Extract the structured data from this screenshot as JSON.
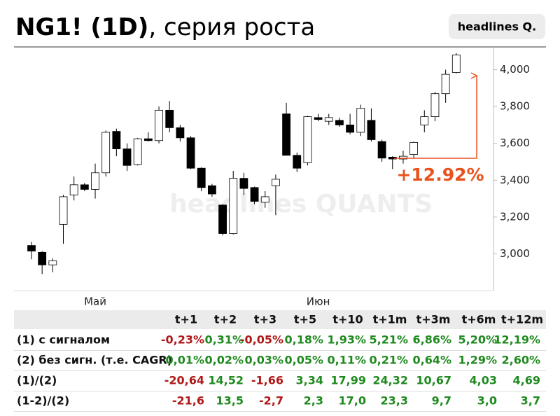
{
  "header": {
    "title": "NG1! (1D)",
    "subtitle": ", серия роста",
    "badge": "headlines Q."
  },
  "chart_data": {
    "type": "candlestick",
    "categories": [
      null,
      null,
      null,
      null,
      null,
      null,
      "Май",
      null,
      null,
      null,
      null,
      null,
      null,
      null,
      null,
      null,
      null,
      null,
      null,
      null,
      null,
      null,
      null,
      null,
      null,
      null,
      null,
      "Июн",
      null,
      null,
      null,
      null,
      null,
      null,
      null,
      null,
      null,
      null,
      null,
      null,
      null
    ],
    "open": [
      3045,
      3008,
      2940,
      3160,
      3320,
      3375,
      3350,
      3440,
      3665,
      3570,
      3485,
      3625,
      3615,
      3780,
      3685,
      3630,
      3465,
      3370,
      3265,
      3110,
      3410,
      3360,
      3280,
      3370,
      3760,
      3535,
      3495,
      3740,
      3720,
      3725,
      3700,
      3660,
      3725,
      3610,
      3525,
      3515,
      3540,
      3700,
      3745,
      3870,
      3985
    ],
    "high": [
      3065,
      3015,
      2975,
      3320,
      3420,
      3385,
      3490,
      3670,
      3680,
      3600,
      3630,
      3660,
      3800,
      3830,
      3700,
      3640,
      3470,
      3380,
      3270,
      3450,
      3440,
      3365,
      3340,
      3430,
      3820,
      3550,
      3750,
      3760,
      3760,
      3740,
      3760,
      3810,
      3790,
      3620,
      3530,
      3560,
      3610,
      3780,
      3880,
      4000,
      4090
    ],
    "low": [
      2970,
      2890,
      2900,
      3055,
      3290,
      3340,
      3300,
      3420,
      3530,
      3450,
      3480,
      3610,
      3600,
      3660,
      3610,
      3460,
      3340,
      3310,
      3100,
      3105,
      3320,
      3270,
      3250,
      3210,
      3535,
      3445,
      3480,
      3720,
      3700,
      3690,
      3650,
      3640,
      3610,
      3500,
      3460,
      3490,
      3520,
      3660,
      3720,
      3820,
      3980
    ],
    "close": [
      3015,
      2940,
      2962,
      3310,
      3375,
      3350,
      3440,
      3660,
      3570,
      3480,
      3625,
      3615,
      3780,
      3685,
      3630,
      3465,
      3360,
      3325,
      3110,
      3410,
      3355,
      3285,
      3310,
      3405,
      3535,
      3465,
      3745,
      3730,
      3740,
      3700,
      3660,
      3790,
      3620,
      3520,
      3515,
      3530,
      3605,
      3745,
      3870,
      3975,
      4080
    ],
    "up_color": "#ffffff",
    "down_color": "#000000",
    "ylim": [
      2800,
      4120
    ],
    "yticks": [
      {
        "value": 3000,
        "label": "3,000"
      },
      {
        "value": 3200,
        "label": "3,200"
      },
      {
        "value": 3400,
        "label": "3,400"
      },
      {
        "value": 3600,
        "label": "3,600"
      },
      {
        "value": 3800,
        "label": "3,800"
      },
      {
        "value": 4000,
        "label": "4,000"
      }
    ],
    "annotation": "+12.92%",
    "annotation_color": "#e8531d",
    "watermark": "headlines QUANTS"
  },
  "table": {
    "header": [
      "t+1",
      "t+2",
      "t+3",
      "t+5",
      "t+10",
      "t+1m",
      "t+3m",
      "t+6m",
      "t+12m"
    ],
    "rows": [
      [
        "(1) с сигналом",
        "-0,23%",
        "0,31%",
        "-0,05%",
        "0,18%",
        "1,93%",
        "5,21%",
        "6,86%",
        "5,20%",
        "12,19%"
      ],
      [
        "(2) без сигн. (т.е. CAGR)",
        "0,01%",
        "0,02%",
        "0,03%",
        "0,05%",
        "0,11%",
        "0,21%",
        "0,64%",
        "1,29%",
        "2,60%"
      ],
      [
        "(1)/(2)",
        "-20,64",
        "14,52",
        "-1,66",
        "3,34",
        "17,99",
        "24,32",
        "10,67",
        "4,03",
        "4,69"
      ],
      [
        "(1-2)/(2)",
        "-21,6",
        "13,5",
        "-2,7",
        "2,3",
        "17,0",
        "23,3",
        "9,7",
        "3,0",
        "3,7"
      ]
    ]
  }
}
